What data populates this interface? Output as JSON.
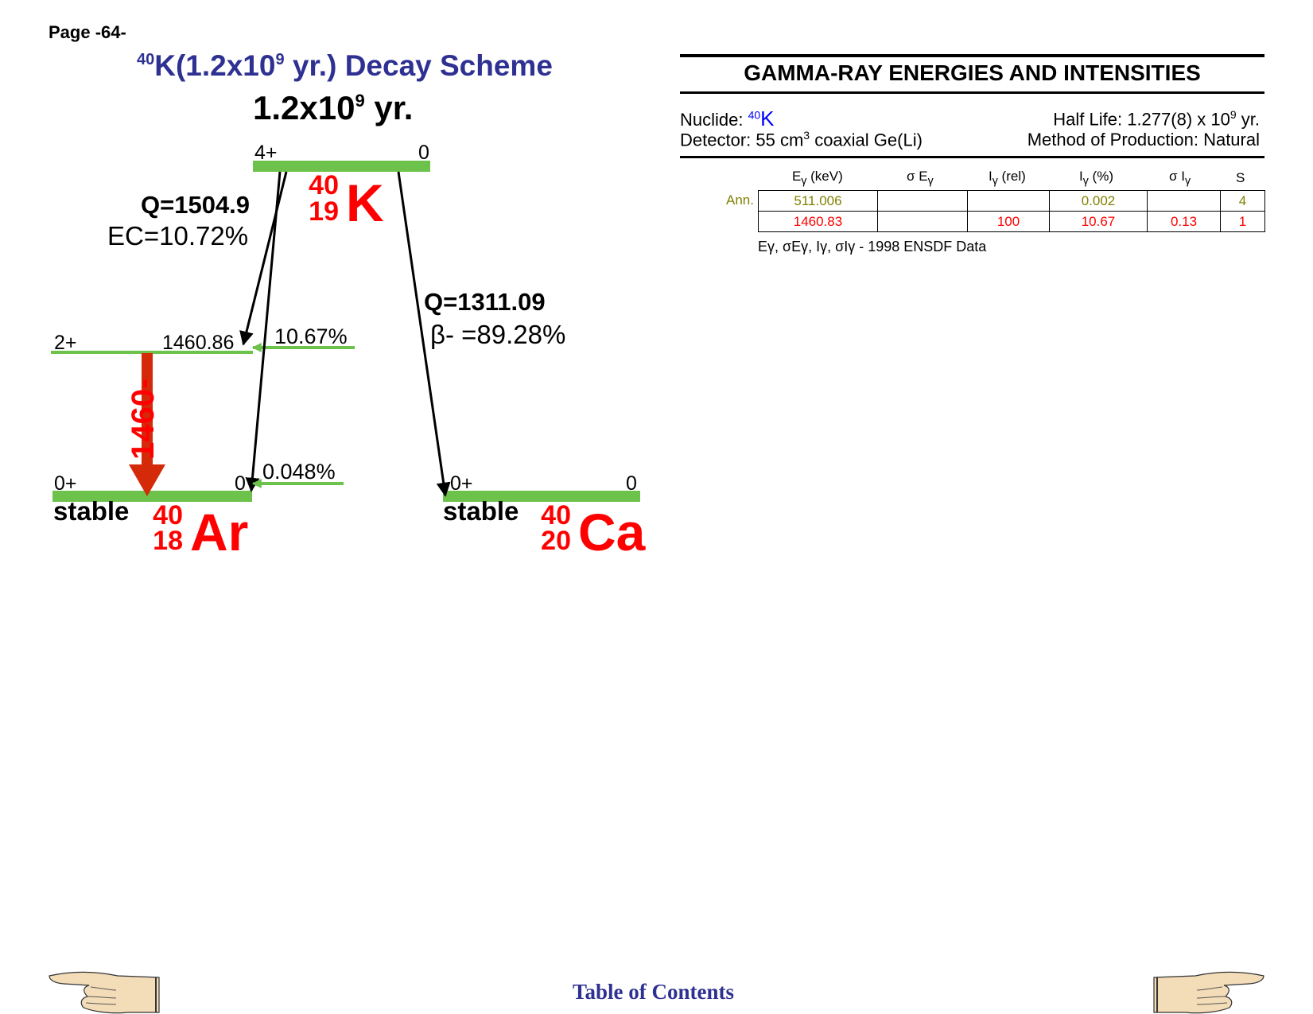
{
  "page": {
    "number": "Page -64-"
  },
  "title": {
    "mass": "40",
    "name": "K(1.2x10",
    "exp": "9",
    "rest": " yr.) Decay Scheme"
  },
  "parent_halflife": {
    "base": "1.2x10",
    "exp": "9",
    "unit": " yr."
  },
  "levels": {
    "parent": {
      "spin": "4+",
      "energy": "0"
    },
    "ar_excited": {
      "spin": "2+",
      "energy": "1460.86"
    },
    "ar_ground": {
      "spin": "0+",
      "energy": "0"
    },
    "ca_ground": {
      "spin": "0+",
      "energy": "0"
    }
  },
  "nuclides": {
    "K": {
      "mass": "40",
      "z": "19",
      "symbol": "K"
    },
    "Ar": {
      "mass": "40",
      "z": "18",
      "symbol": "Ar",
      "status": "stable"
    },
    "Ca": {
      "mass": "40",
      "z": "20",
      "symbol": "Ca",
      "status": "stable"
    }
  },
  "branches": {
    "ec": {
      "q": "Q=1504.9",
      "ratio": "EC=10.72%",
      "excited_pct": "10.67%",
      "ground_pct": "0.048%"
    },
    "beta": {
      "q": "Q=1311.09",
      "ratio": "β- =89.28%"
    }
  },
  "gamma_line_label": "1460-",
  "gamma_panel": {
    "title": "GAMMA-RAY ENERGIES AND INTENSITIES",
    "nuclide_label": "Nuclide: ",
    "nuclide_mass": "40",
    "nuclide_symbol": "K",
    "half_life": {
      "prefix": "Half Life: 1.277(8) x 10",
      "exp": "9",
      "suffix": " yr."
    },
    "detector": {
      "prefix": "Detector: 55 cm",
      "exp": "3",
      "suffix": " coaxial Ge(Li)"
    },
    "production": "Method of Production: Natural",
    "columns": [
      {
        "main": "E",
        "sub": "γ",
        "tail": " (keV)"
      },
      {
        "main": "σ E",
        "sub": "γ",
        "tail": ""
      },
      {
        "main": "I",
        "sub": "γ",
        "tail": " (rel)"
      },
      {
        "main": "I",
        "sub": "γ",
        "tail": " (%)"
      },
      {
        "main": "σ I",
        "sub": "γ",
        "tail": ""
      },
      {
        "main": "S",
        "sub": "",
        "tail": ""
      }
    ],
    "rows": [
      {
        "label": "Ann.",
        "cells": [
          "511.006",
          "",
          "",
          "0.002",
          "",
          "4"
        ]
      },
      {
        "label": "",
        "cells": [
          "1460.83",
          "",
          "100",
          "10.67",
          "0.13",
          "1"
        ]
      }
    ],
    "source_symbols": "Eγ, σEγ, Iγ, σIγ - ",
    "source": "1998 ENSDF Data"
  },
  "footer": {
    "toc": "Table of Contents"
  },
  "colors": {
    "level_bar": "#6cc24a",
    "nuclide": "#ff0000",
    "title": "#2e3192",
    "gamma_arrow": "#d42a0a",
    "annihilation_row": "#808000"
  }
}
